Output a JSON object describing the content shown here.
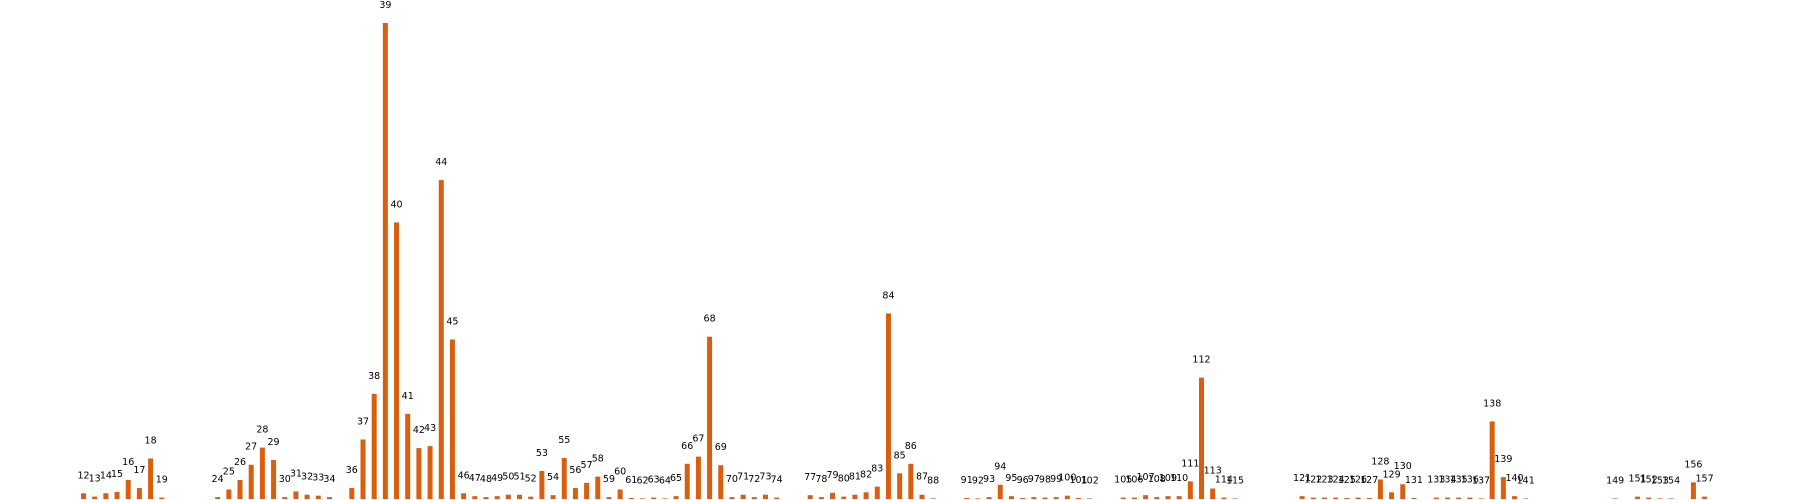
{
  "chart_data": {
    "type": "bar",
    "title": "",
    "xlabel": "",
    "ylabel": "",
    "grid": false,
    "ylim": [
      0,
      100
    ],
    "bar_color": "#D95F0E",
    "label_color": "#000000",
    "categories": [
      "12",
      "13",
      "14",
      "15",
      "16",
      "17",
      "18",
      "19",
      "24",
      "25",
      "26",
      "27",
      "28",
      "29",
      "30",
      "31",
      "32",
      "33",
      "34",
      "36",
      "37",
      "38",
      "39",
      "40",
      "41",
      "42",
      "43",
      "44",
      "45",
      "46",
      "47",
      "48",
      "49",
      "50",
      "51",
      "52",
      "53",
      "54",
      "55",
      "56",
      "57",
      "58",
      "59",
      "60",
      "61",
      "62",
      "63",
      "64",
      "65",
      "66",
      "67",
      "68",
      "69",
      "70",
      "71",
      "72",
      "73",
      "74",
      "77",
      "78",
      "79",
      "80",
      "81",
      "82",
      "83",
      "84",
      "85",
      "86",
      "87",
      "88",
      "91",
      "92",
      "93",
      "94",
      "95",
      "96",
      "97",
      "98",
      "99",
      "100",
      "101",
      "102",
      "105",
      "106",
      "107",
      "108",
      "109",
      "110",
      "111",
      "112",
      "113",
      "114",
      "115",
      "121",
      "122",
      "123",
      "124",
      "125",
      "126",
      "127",
      "128",
      "129",
      "130",
      "131",
      "133",
      "134",
      "135",
      "136",
      "137",
      "138",
      "139",
      "140",
      "141",
      "149",
      "151",
      "152",
      "153",
      "154",
      "156",
      "157"
    ],
    "x": [
      12,
      13,
      14,
      15,
      16,
      17,
      18,
      19,
      24,
      25,
      26,
      27,
      28,
      29,
      30,
      31,
      32,
      33,
      34,
      36,
      37,
      38,
      39,
      40,
      41,
      42,
      43,
      44,
      45,
      46,
      47,
      48,
      49,
      50,
      51,
      52,
      53,
      54,
      55,
      56,
      57,
      58,
      59,
      60,
      61,
      62,
      63,
      64,
      65,
      66,
      67,
      68,
      69,
      70,
      71,
      72,
      73,
      74,
      77,
      78,
      79,
      80,
      81,
      82,
      83,
      84,
      85,
      86,
      87,
      88,
      91,
      92,
      93,
      94,
      95,
      96,
      97,
      98,
      99,
      100,
      101,
      102,
      105,
      106,
      107,
      108,
      109,
      110,
      111,
      112,
      113,
      114,
      115,
      121,
      122,
      123,
      124,
      125,
      126,
      127,
      128,
      129,
      130,
      131,
      133,
      134,
      135,
      136,
      137,
      138,
      139,
      140,
      141,
      149,
      151,
      152,
      153,
      154,
      156,
      157
    ],
    "values": [
      1.2,
      0.5,
      1.2,
      1.5,
      4,
      2.3,
      8.5,
      0.3,
      0.4,
      2,
      4,
      7.2,
      10.8,
      8.2,
      0.4,
      1.6,
      0.9,
      0.7,
      0.4,
      2.3,
      12.5,
      22.1,
      100,
      58.1,
      17.9,
      10.7,
      11.1,
      67,
      33.5,
      1.2,
      0.6,
      0.4,
      0.6,
      0.9,
      0.9,
      0.5,
      5.9,
      0.8,
      8.6,
      2.3,
      3.4,
      4.7,
      0.4,
      2,
      0.2,
      0.1,
      0.3,
      0.1,
      0.6,
      7.4,
      8.9,
      34.1,
      7.1,
      0.4,
      0.9,
      0.4,
      0.9,
      0.3,
      0.8,
      0.4,
      1.3,
      0.5,
      0.9,
      1.4,
      2.6,
      39,
      5.4,
      7.4,
      0.9,
      0.1,
      0.2,
      0.1,
      0.4,
      3,
      0.6,
      0.2,
      0.4,
      0.3,
      0.4,
      0.7,
      0.2,
      0.1,
      0.3,
      0.3,
      0.8,
      0.4,
      0.6,
      0.6,
      3.7,
      25.5,
      2.2,
      0.3,
      0.1,
      0.6,
      0.3,
      0.3,
      0.3,
      0.2,
      0.3,
      0.2,
      4.1,
      1.4,
      3.1,
      0.2,
      0.3,
      0.3,
      0.3,
      0.3,
      0.1,
      16.3,
      4.6,
      0.6,
      0.1,
      0.1,
      0.5,
      0.3,
      0.1,
      0.1,
      3.5,
      0.5
    ]
  }
}
